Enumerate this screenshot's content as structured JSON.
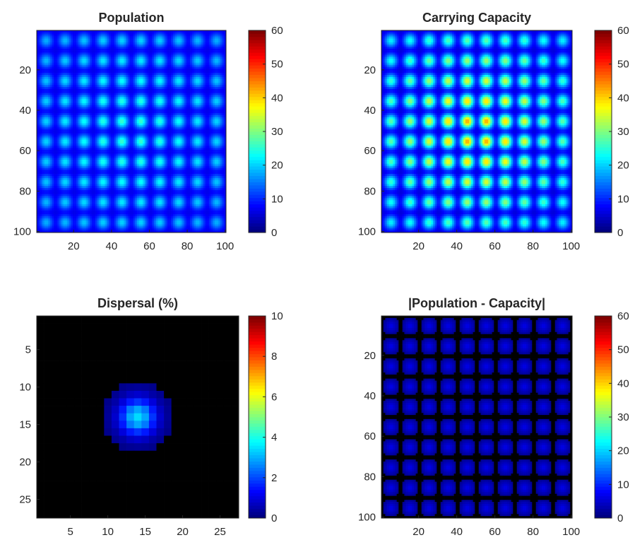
{
  "figure": {
    "colormap": "jet",
    "background": "#ffffff",
    "axis_color": "#262626"
  },
  "chart_data": [
    {
      "type": "heatmap",
      "title": "Population",
      "grid": "100x100",
      "pattern": "10x10 lattice of smooth bumps, peak grows toward center",
      "x_ticks": [
        "20",
        "40",
        "60",
        "80",
        "100"
      ],
      "y_ticks": [
        "20",
        "40",
        "60",
        "80",
        "100"
      ],
      "xlim": [
        0.5,
        100.5
      ],
      "ylim": [
        0.5,
        100.5
      ],
      "y_reversed": true,
      "clim": [
        0,
        60
      ],
      "colorbar_ticks": [
        "0",
        "10",
        "20",
        "30",
        "40",
        "50",
        "60"
      ],
      "bump_peak_range": [
        18,
        27
      ],
      "background_value": 6,
      "grid_lines": false
    },
    {
      "type": "heatmap",
      "title": "Carrying Capacity",
      "grid": "100x100",
      "pattern": "10x10 lattice of smooth bumps, peak grows toward center",
      "x_ticks": [
        "20",
        "40",
        "60",
        "80",
        "100"
      ],
      "y_ticks": [
        "20",
        "40",
        "60",
        "80",
        "100"
      ],
      "xlim": [
        0.5,
        100.5
      ],
      "ylim": [
        0.5,
        100.5
      ],
      "y_reversed": true,
      "clim": [
        0,
        60
      ],
      "colorbar_ticks": [
        "0",
        "10",
        "20",
        "30",
        "40",
        "50",
        "60"
      ],
      "bump_peak_range": [
        22,
        46
      ],
      "background_value": 5,
      "grid_lines": false
    },
    {
      "type": "heatmap",
      "title": "Dispersal (%)",
      "grid": "27x27",
      "pattern": "single Gaussian kernel centered at (14, 14), zero (black) outside radius",
      "x_ticks": [
        "5",
        "10",
        "15",
        "20",
        "25"
      ],
      "y_ticks": [
        "5",
        "10",
        "15",
        "20",
        "25"
      ],
      "xlim": [
        0.5,
        27.5
      ],
      "ylim": [
        0.5,
        27.5
      ],
      "y_reversed": true,
      "clim": [
        0,
        10
      ],
      "colorbar_ticks": [
        "0",
        "2",
        "4",
        "6",
        "8",
        "10"
      ],
      "kernel_center": [
        14,
        14
      ],
      "kernel_peak": 3.4,
      "kernel_radius": 4.6,
      "zero_color": "#000000",
      "grid_lines": false
    },
    {
      "type": "heatmap",
      "title": "|Population - Capacity|",
      "grid": "100x100",
      "pattern": "10x10 lattice of low-valued blobs, zero (black) gaps between",
      "x_ticks": [
        "20",
        "40",
        "60",
        "80",
        "100"
      ],
      "y_ticks": [
        "20",
        "40",
        "60",
        "80",
        "100"
      ],
      "xlim": [
        0.5,
        100.5
      ],
      "ylim": [
        0.5,
        100.5
      ],
      "y_reversed": true,
      "clim": [
        0,
        60
      ],
      "colorbar_ticks": [
        "0",
        "10",
        "20",
        "30",
        "40",
        "50",
        "60"
      ],
      "blob_value_range": [
        1,
        9
      ],
      "zero_color": "#000000",
      "grid_lines": false
    }
  ]
}
